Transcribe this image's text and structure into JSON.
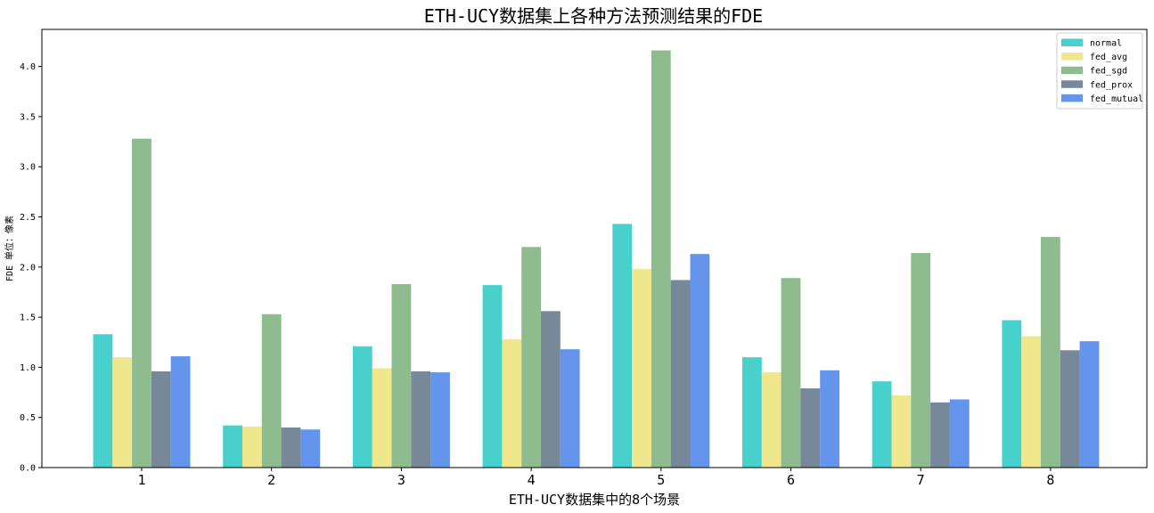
{
  "chart_data": {
    "type": "bar",
    "title": "ETH-UCY数据集上各种方法预测结果的FDE",
    "xlabel": "ETH-UCY数据集中的8个场景",
    "ylabel": "FDE 单位：像素",
    "categories": [
      "1",
      "2",
      "3",
      "4",
      "5",
      "6",
      "7",
      "8"
    ],
    "ylim": [
      0,
      4.37
    ],
    "yticks": [
      "0.0",
      "0.5",
      "1.0",
      "1.5",
      "2.0",
      "2.5",
      "3.0",
      "3.5",
      "4.0"
    ],
    "grid": false,
    "legend_position": "top-right",
    "series": [
      {
        "name": "normal",
        "color": "#48d1cc",
        "values": [
          1.33,
          0.42,
          1.21,
          1.82,
          2.43,
          1.1,
          0.86,
          1.47
        ]
      },
      {
        "name": "fed_avg",
        "color": "#f0e68c",
        "values": [
          1.1,
          0.41,
          0.99,
          1.28,
          1.98,
          0.95,
          0.72,
          1.31
        ]
      },
      {
        "name": "fed_sgd",
        "color": "#8fbc8f",
        "values": [
          3.28,
          1.53,
          1.83,
          2.2,
          4.16,
          1.89,
          2.14,
          2.3
        ]
      },
      {
        "name": "fed_prox",
        "color": "#778899",
        "values": [
          0.96,
          0.4,
          0.96,
          1.56,
          1.87,
          0.79,
          0.65,
          1.17
        ]
      },
      {
        "name": "fed_mutual",
        "color": "#6495ed",
        "values": [
          1.11,
          0.38,
          0.95,
          1.18,
          2.13,
          0.97,
          0.68,
          1.26
        ]
      }
    ]
  }
}
